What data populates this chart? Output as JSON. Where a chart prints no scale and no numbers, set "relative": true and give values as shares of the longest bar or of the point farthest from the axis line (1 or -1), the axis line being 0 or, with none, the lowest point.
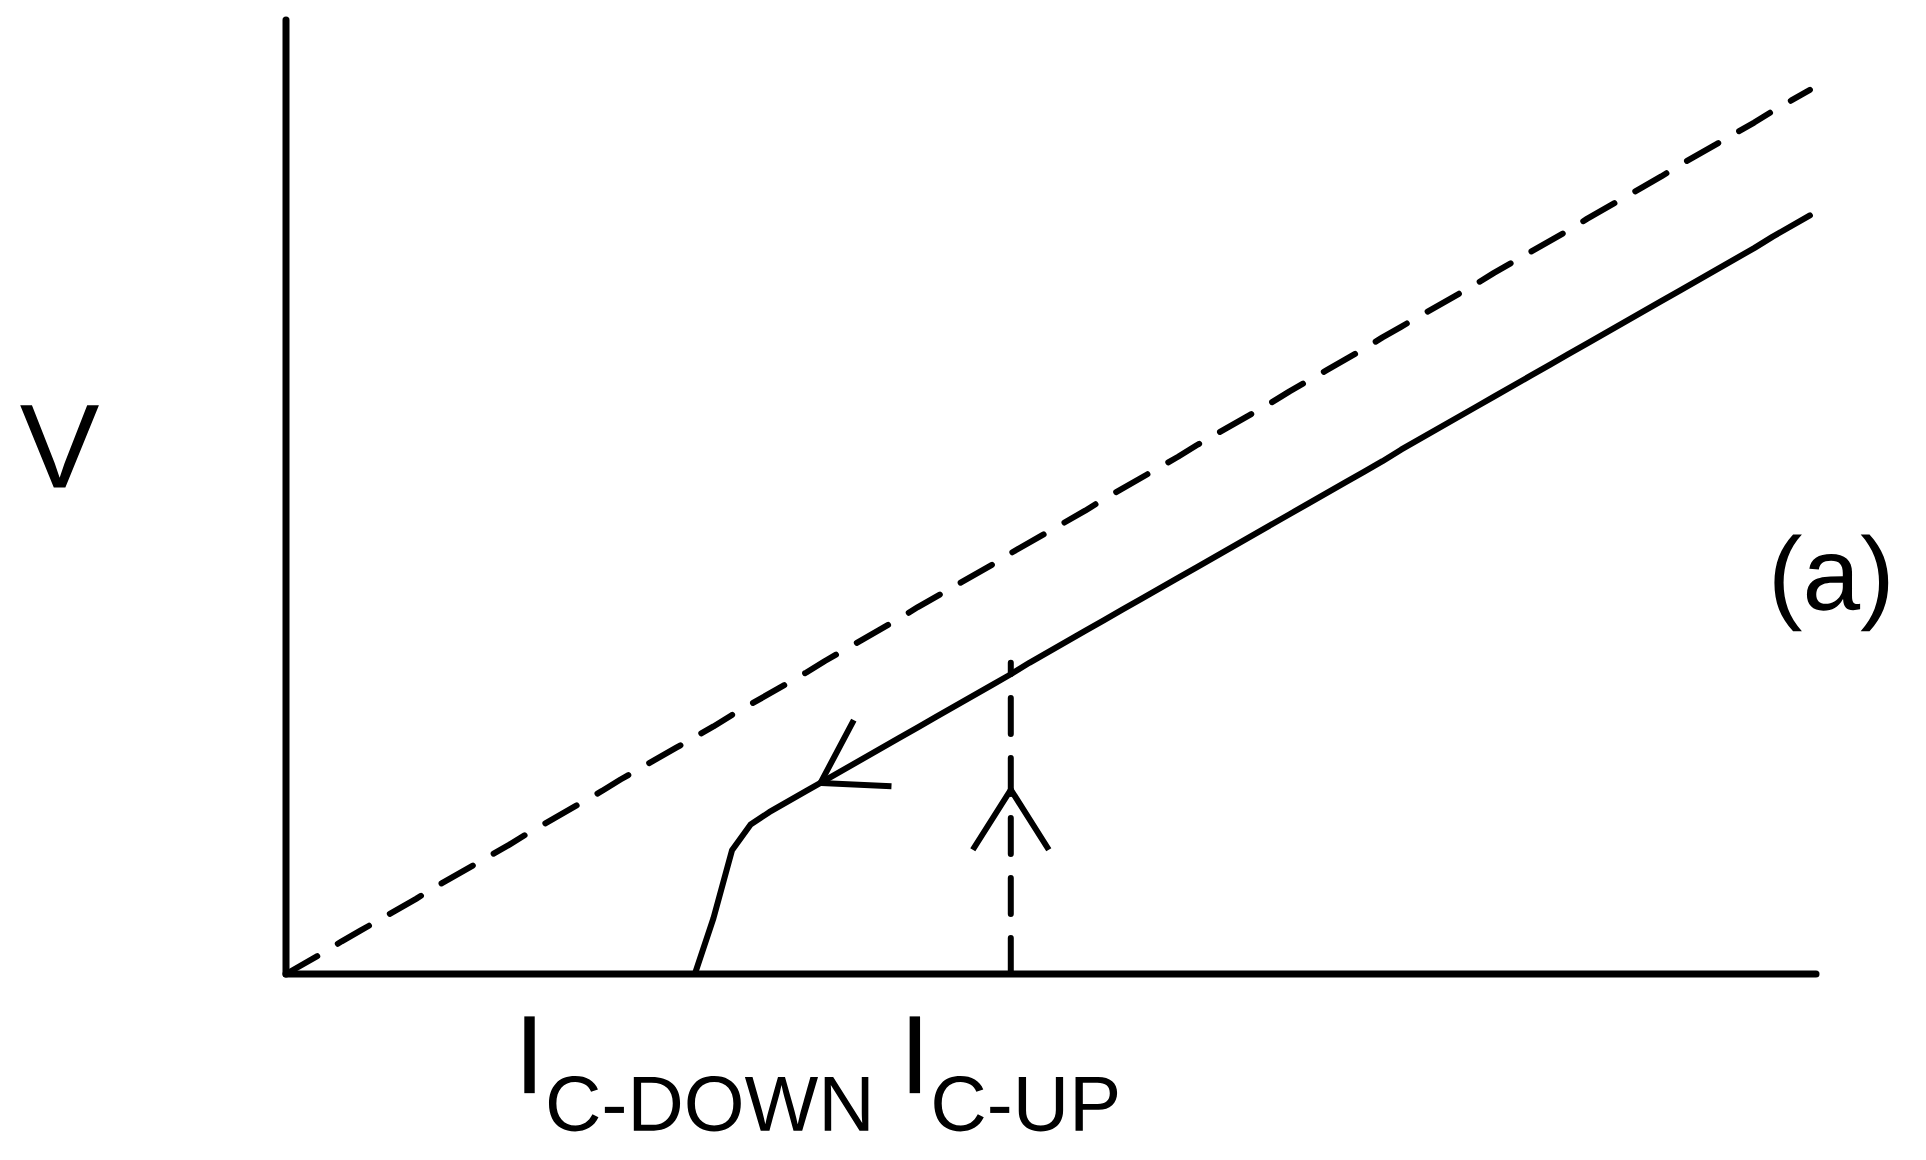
{
  "chart_data": {
    "type": "line",
    "ylabel": "V",
    "relative": true,
    "marker": "none",
    "line_style": "solid",
    "categories": [
      null,
      null,
      null,
      null,
      null,
      null,
      null,
      null,
      null,
      null,
      null,
      null,
      null,
      null,
      null,
      null,
      null,
      null,
      null,
      null,
      null,
      null,
      "I$_{C-DOWN}$",
      null,
      null,
      null,
      null,
      null,
      null,
      null,
      null,
      null,
      null,
      null,
      null,
      null,
      null,
      null,
      null,
      "I$_{C-UP}$",
      null,
      null,
      null,
      null,
      null,
      null,
      null,
      null,
      null,
      null,
      null,
      null,
      null,
      null,
      null,
      null,
      null,
      null,
      null,
      null,
      null,
      null,
      null,
      null,
      null,
      null,
      null,
      null,
      null,
      null,
      null,
      null,
      null,
      null,
      null,
      null,
      null,
      null,
      null,
      null,
      null,
      null,
      null
    ],
    "series": [
      {
        "color": "#000000",
        "line_style": "dashed",
        "values": [
          0,
          0.012,
          0.024,
          0.037,
          0.049,
          0.061,
          0.073,
          0.085,
          0.098,
          0.11,
          0.122,
          0.134,
          0.146,
          0.159,
          0.171,
          0.183,
          0.195,
          0.207,
          0.22,
          0.232,
          0.244,
          0.256,
          0.268,
          0.28,
          0.293,
          0.305,
          0.317,
          0.329,
          0.341,
          0.354,
          0.366,
          0.378,
          0.39,
          0.402,
          0.415,
          0.427,
          0.439,
          0.451,
          0.463,
          0.476,
          0.488,
          0.5,
          0.512,
          0.524,
          0.537,
          0.549,
          0.561,
          0.573,
          0.585,
          0.598,
          0.61,
          0.622,
          0.634,
          0.646,
          0.659,
          0.671,
          0.683,
          0.695,
          0.707,
          0.72,
          0.732,
          0.744,
          0.756,
          0.768,
          0.78,
          0.793,
          0.805,
          0.817,
          0.829,
          0.841,
          0.854,
          0.866,
          0.878,
          0.89,
          0.902,
          0.915,
          0.927,
          0.939,
          0.951,
          0.963,
          0.976,
          0.988,
          1
        ]
      },
      {
        "color": "#000000",
        "values": [
          null,
          null,
          null,
          null,
          null,
          null,
          null,
          null,
          null,
          null,
          null,
          null,
          null,
          null,
          null,
          null,
          null,
          null,
          null,
          null,
          null,
          null,
          0,
          0.063,
          0.14,
          0.169,
          0.183,
          0.195,
          0.207,
          0.219,
          0.231,
          0.243,
          0.255,
          0.267,
          0.279,
          0.291,
          0.303,
          0.315,
          0.327,
          0.339,
          0.352,
          0.364,
          0.376,
          0.388,
          0.4,
          0.412,
          0.424,
          0.436,
          0.448,
          0.46,
          0.472,
          0.484,
          0.496,
          0.508,
          0.52,
          0.532,
          0.544,
          0.556,
          0.568,
          0.58,
          0.593,
          0.605,
          0.617,
          0.629,
          0.641,
          0.653,
          0.665,
          0.677,
          0.689,
          0.701,
          0.713,
          0.725,
          0.737,
          0.749,
          0.761,
          0.773,
          0.785,
          0.797,
          0.809,
          0.821,
          0.834,
          0.846,
          0.858
        ]
      },
      {
        "color": "#000000",
        "line_style": "dashed",
        "x": [
          "I$_{C-UP}$",
          "I$_{C-UP}$"
        ],
        "values": [
          0,
          0.352
        ]
      }
    ],
    "annotations": [
      "(a)"
    ]
  }
}
